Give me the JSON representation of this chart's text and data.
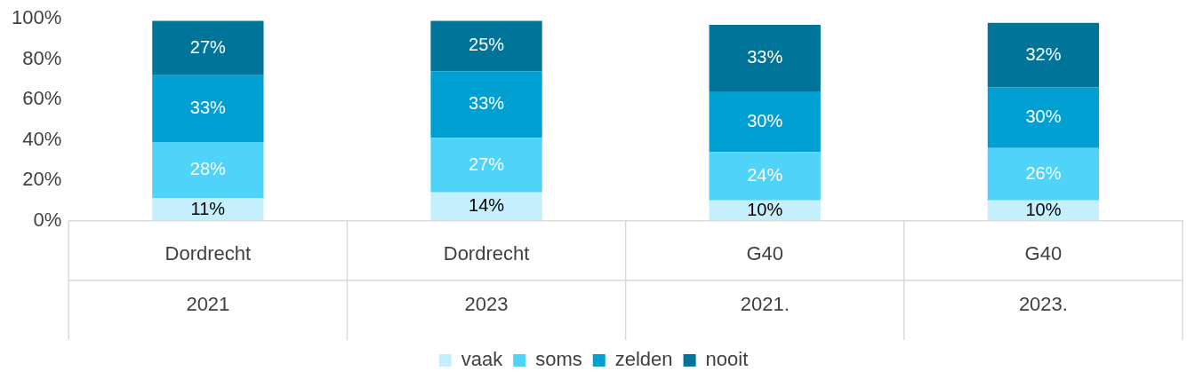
{
  "chart_data": {
    "type": "bar",
    "stacked": true,
    "categories": [
      "Dordrecht\n2021",
      "Dordrecht\n2023",
      "G40\n2021.",
      "G40\n2023."
    ],
    "series": [
      {
        "name": "vaak",
        "color": "#c5effc",
        "values": [
          11,
          14,
          10,
          10
        ],
        "value_labels": [
          "11%",
          "14%",
          "10%",
          "10%"
        ]
      },
      {
        "name": "soms",
        "color": "#4fd3f8",
        "values": [
          28,
          27,
          24,
          26
        ],
        "value_labels": [
          "28%",
          "27%",
          "24%",
          "26%"
        ]
      },
      {
        "name": "zelden",
        "color": "#00a0d2",
        "values": [
          33,
          33,
          30,
          30
        ],
        "value_labels": [
          "33%",
          "33%",
          "30%",
          "30%"
        ]
      },
      {
        "name": "nooit",
        "color": "#007599",
        "values": [
          27,
          25,
          33,
          32
        ],
        "value_labels": [
          "27%",
          "25%",
          "33%",
          "32%"
        ]
      }
    ],
    "ylim": [
      0,
      100
    ],
    "yticks": [
      {
        "value": 0,
        "label": "0%"
      },
      {
        "value": 20,
        "label": "20%"
      },
      {
        "value": 40,
        "label": "40%"
      },
      {
        "value": 60,
        "label": "60%"
      },
      {
        "value": 80,
        "label": "80%"
      },
      {
        "value": 100,
        "label": "100%"
      }
    ],
    "grid": false,
    "legend": "bottom"
  }
}
